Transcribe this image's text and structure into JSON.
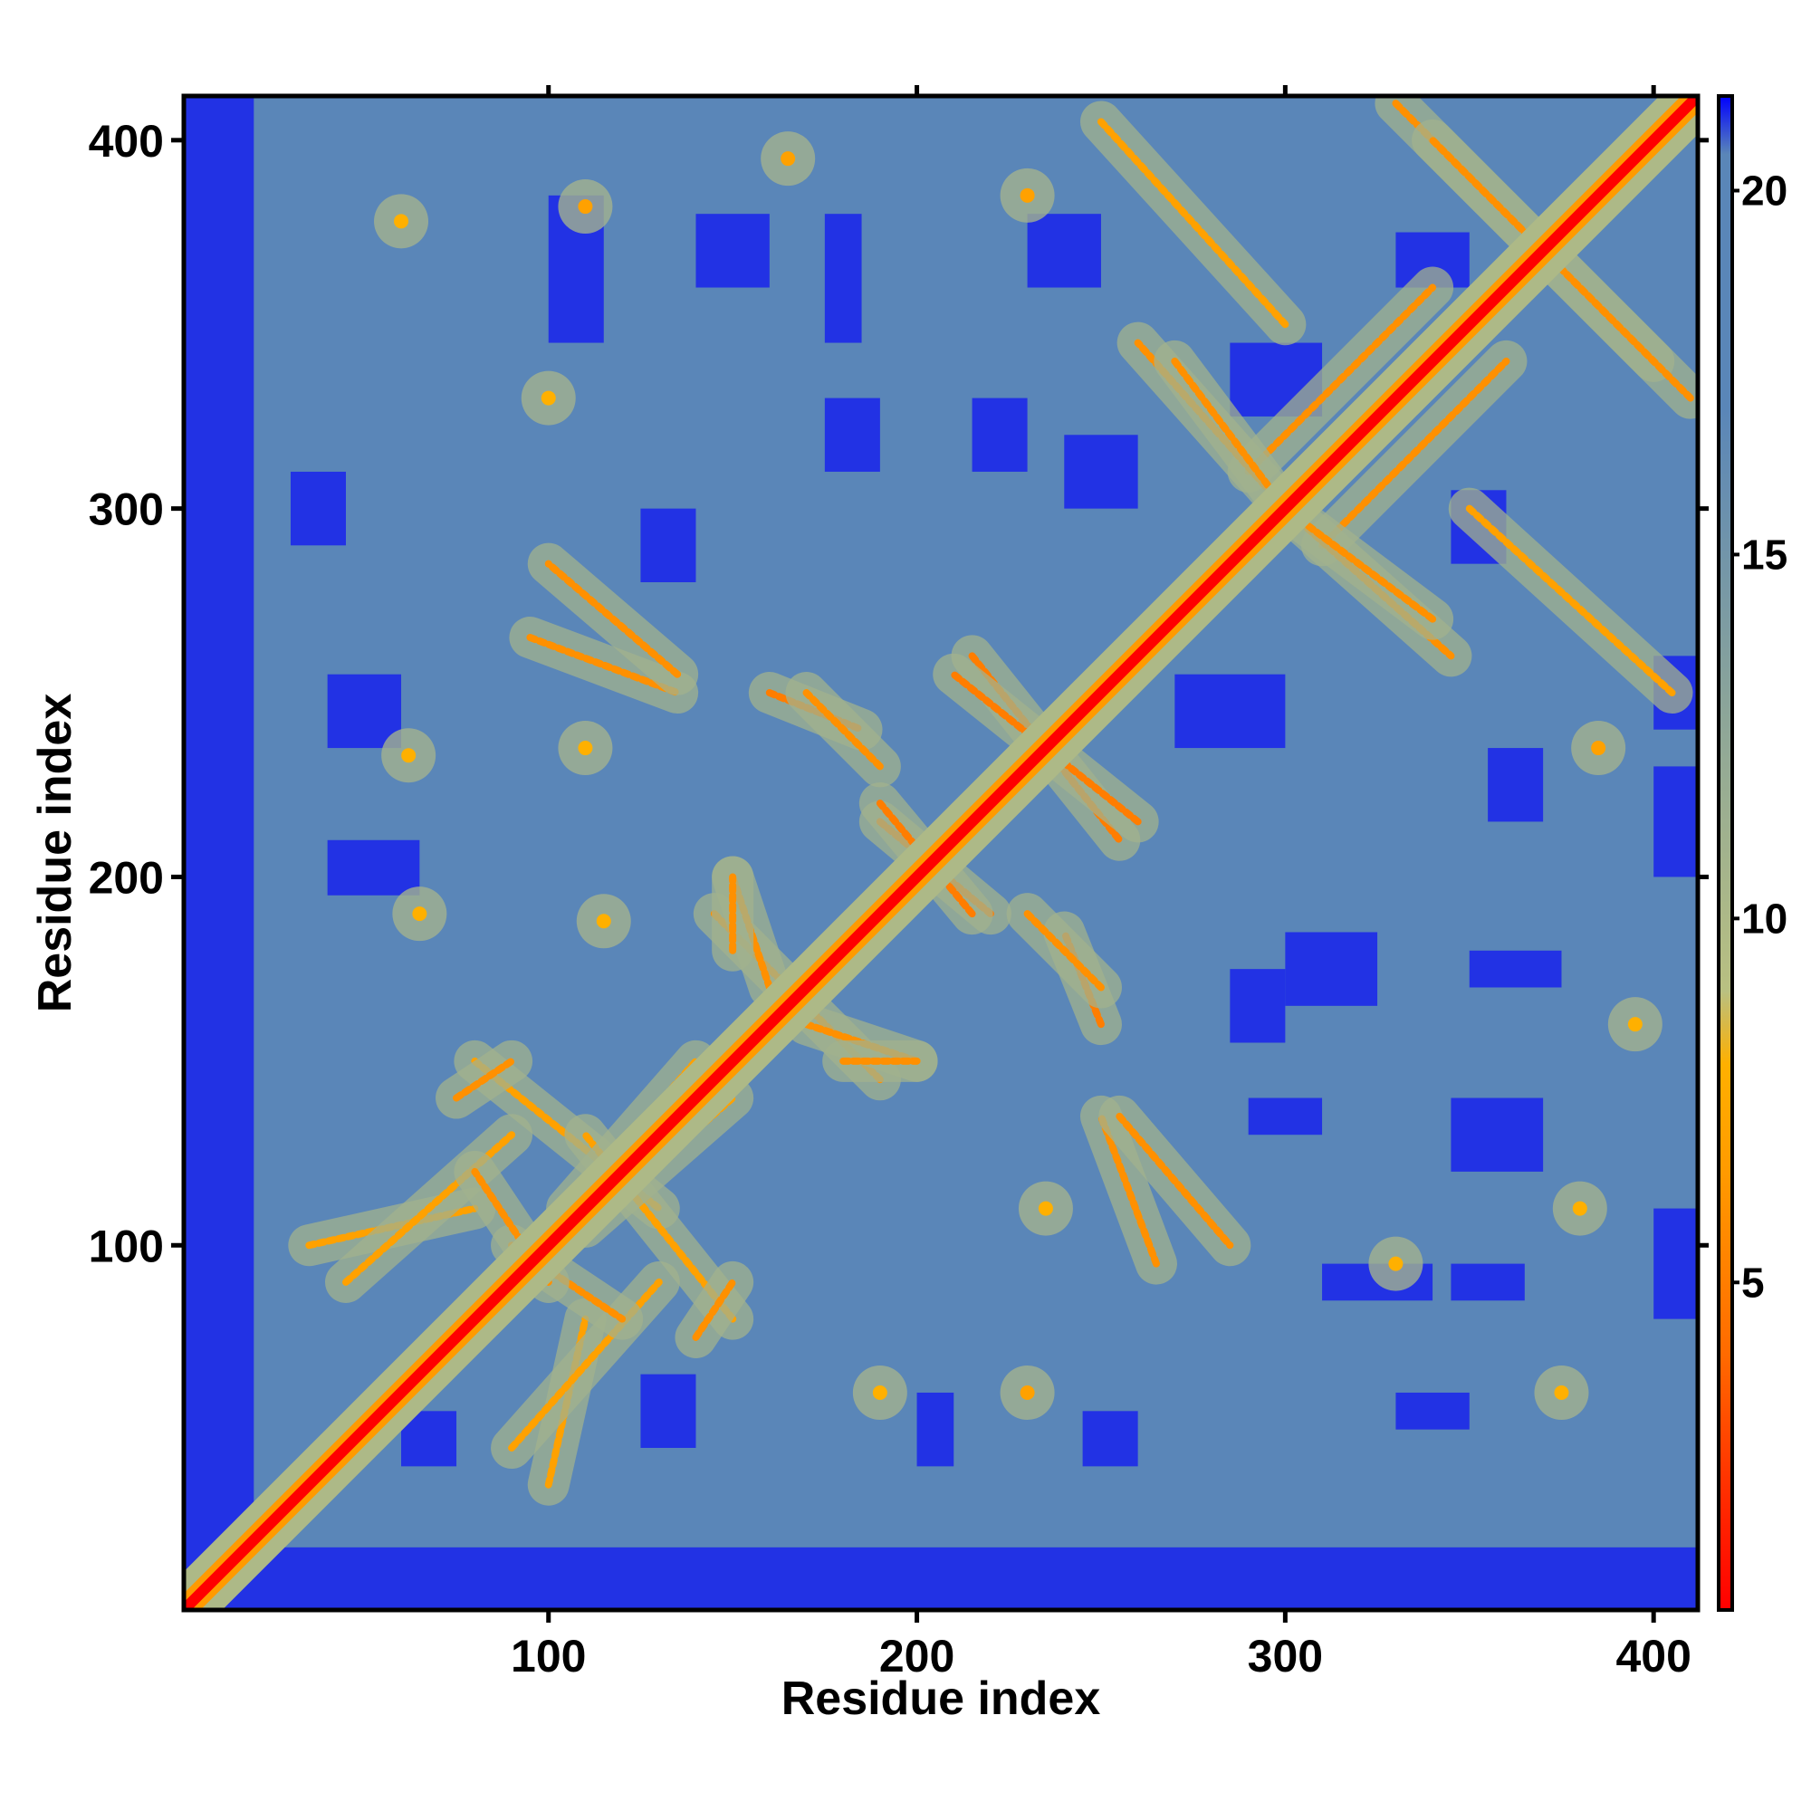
{
  "chart_data": {
    "type": "heatmap",
    "title": "",
    "xlabel": "Residue index",
    "ylabel": "Residue index",
    "xlim": [
      1,
      412
    ],
    "ylim": [
      1,
      412
    ],
    "x_ticks": [
      100,
      200,
      300,
      400
    ],
    "y_ticks": [
      100,
      200,
      300,
      400
    ],
    "colorbar": {
      "range": [
        0.5,
        21.3
      ],
      "ticks": [
        5,
        10,
        15,
        20
      ],
      "colors": {
        "near": "#ff0000",
        "mid": "#ff8c00",
        "light": "#d2c98a",
        "far": "#5a86b8",
        "max": "#0000ff"
      },
      "stops": [
        {
          "value": 0.5,
          "color": "#ff0000"
        },
        {
          "value": 2.0,
          "color": "#ff2a00"
        },
        {
          "value": 4.0,
          "color": "#ff6a00"
        },
        {
          "value": 6.5,
          "color": "#ff9a00"
        },
        {
          "value": 8.0,
          "color": "#ffb000"
        },
        {
          "value": 9.0,
          "color": "#b9c081"
        },
        {
          "value": 13.0,
          "color": "#8aa49a"
        },
        {
          "value": 17.0,
          "color": "#5a86b8"
        },
        {
          "value": 20.5,
          "color": "#5a86b8"
        },
        {
          "value": 21.3,
          "color": "#0000ff"
        }
      ]
    },
    "features": {
      "diagonal": {
        "from": [
          1,
          1
        ],
        "to": [
          412,
          412
        ],
        "value": 0
      },
      "contact_bands": [
        {
          "from": [
            290,
            310
          ],
          "to": [
            340,
            360
          ],
          "value": 6
        },
        {
          "from": [
            300,
            300
          ],
          "to": [
            345,
            260
          ],
          "value": 6
        },
        {
          "from": [
            270,
            340
          ],
          "to": [
            300,
            300
          ],
          "value": 6
        },
        {
          "from": [
            330,
            410
          ],
          "to": [
            400,
            340
          ],
          "value": 6
        },
        {
          "from": [
            350,
            300
          ],
          "to": [
            405,
            250
          ],
          "value": 7
        },
        {
          "from": [
            95,
            265
          ],
          "to": [
            135,
            250
          ],
          "value": 6
        },
        {
          "from": [
            160,
            250
          ],
          "to": [
            185,
            240
          ],
          "value": 5
        },
        {
          "from": [
            215,
            260
          ],
          "to": [
            255,
            210
          ],
          "value": 5
        },
        {
          "from": [
            190,
            215
          ],
          "to": [
            220,
            190
          ],
          "value": 5
        },
        {
          "from": [
            145,
            190
          ],
          "to": [
            165,
            170
          ],
          "value": 6
        },
        {
          "from": [
            230,
            190
          ],
          "to": [
            250,
            170
          ],
          "value": 6
        },
        {
          "from": [
            170,
            160
          ],
          "to": [
            200,
            150
          ],
          "value": 6
        },
        {
          "from": [
            80,
            150
          ],
          "to": [
            130,
            110
          ],
          "value": 7
        },
        {
          "from": [
            110,
            105
          ],
          "to": [
            150,
            140
          ],
          "value": 7
        },
        {
          "from": [
            35,
            100
          ],
          "to": [
            80,
            110
          ],
          "value": 7
        },
        {
          "from": [
            90,
            45
          ],
          "to": [
            130,
            90
          ],
          "value": 7
        },
        {
          "from": [
            90,
            100
          ],
          "to": [
            120,
            80
          ],
          "value": 6
        },
        {
          "from": [
            140,
            75
          ],
          "to": [
            150,
            90
          ],
          "value": 6
        },
        {
          "from": [
            255,
            135
          ],
          "to": [
            285,
            100
          ],
          "value": 6
        },
        {
          "from": [
            180,
            150
          ],
          "to": [
            200,
            150
          ],
          "value": 6
        },
        {
          "from": [
            60,
            60
          ],
          "to": [
            90,
            90
          ],
          "value": 6
        }
      ],
      "hotspots": [
        {
          "x": 165,
          "y": 395,
          "value": 7
        },
        {
          "x": 110,
          "y": 382,
          "value": 7
        },
        {
          "x": 60,
          "y": 378,
          "value": 8
        },
        {
          "x": 230,
          "y": 385,
          "value": 7
        },
        {
          "x": 100,
          "y": 330,
          "value": 8
        },
        {
          "x": 62,
          "y": 233,
          "value": 8
        },
        {
          "x": 110,
          "y": 235,
          "value": 8
        },
        {
          "x": 65,
          "y": 190,
          "value": 8
        },
        {
          "x": 115,
          "y": 188,
          "value": 8
        },
        {
          "x": 385,
          "y": 235,
          "value": 7
        },
        {
          "x": 395,
          "y": 160,
          "value": 8
        },
        {
          "x": 330,
          "y": 95,
          "value": 8
        },
        {
          "x": 375,
          "y": 60,
          "value": 8
        },
        {
          "x": 380,
          "y": 110,
          "value": 8
        },
        {
          "x": 230,
          "y": 60,
          "value": 7
        },
        {
          "x": 190,
          "y": 60,
          "value": 8
        },
        {
          "x": 235,
          "y": 110,
          "value": 8
        }
      ],
      "far_regions": [
        {
          "x": [
            1,
            20
          ],
          "y": [
            1,
            412
          ],
          "value": 21
        },
        {
          "x": [
            1,
            412
          ],
          "y": [
            1,
            18
          ],
          "value": 21
        },
        {
          "x": [
            140,
            160
          ],
          "y": [
            360,
            380
          ],
          "value": 21
        },
        {
          "x": [
            100,
            115
          ],
          "y": [
            345,
            385
          ],
          "value": 21
        },
        {
          "x": [
            175,
            185
          ],
          "y": [
            345,
            380
          ],
          "value": 21
        },
        {
          "x": [
            230,
            250
          ],
          "y": [
            360,
            380
          ],
          "value": 21
        },
        {
          "x": [
            285,
            310
          ],
          "y": [
            325,
            345
          ],
          "value": 21
        },
        {
          "x": [
            330,
            350
          ],
          "y": [
            360,
            375
          ],
          "value": 21
        },
        {
          "x": [
            345,
            360
          ],
          "y": [
            285,
            305
          ],
          "value": 21
        },
        {
          "x": [
            125,
            140
          ],
          "y": [
            280,
            300
          ],
          "value": 21
        },
        {
          "x": [
            175,
            190
          ],
          "y": [
            310,
            330
          ],
          "value": 21
        },
        {
          "x": [
            215,
            230
          ],
          "y": [
            310,
            330
          ],
          "value": 21
        },
        {
          "x": [
            240,
            260
          ],
          "y": [
            300,
            320
          ],
          "value": 21
        },
        {
          "x": [
            30,
            45
          ],
          "y": [
            290,
            310
          ],
          "value": 21
        },
        {
          "x": [
            40,
            60
          ],
          "y": [
            235,
            255
          ],
          "value": 21
        },
        {
          "x": [
            40,
            65
          ],
          "y": [
            195,
            210
          ],
          "value": 21
        },
        {
          "x": [
            270,
            300
          ],
          "y": [
            235,
            255
          ],
          "value": 21
        },
        {
          "x": [
            355,
            370
          ],
          "y": [
            215,
            235
          ],
          "value": 21
        },
        {
          "x": [
            285,
            300
          ],
          "y": [
            155,
            175
          ],
          "value": 21
        },
        {
          "x": [
            300,
            325
          ],
          "y": [
            165,
            185
          ],
          "value": 21
        },
        {
          "x": [
            350,
            375
          ],
          "y": [
            170,
            180
          ],
          "value": 21
        },
        {
          "x": [
            290,
            310
          ],
          "y": [
            130,
            140
          ],
          "value": 21
        },
        {
          "x": [
            345,
            370
          ],
          "y": [
            120,
            140
          ],
          "value": 21
        },
        {
          "x": [
            310,
            340
          ],
          "y": [
            85,
            95
          ],
          "value": 21
        },
        {
          "x": [
            345,
            365
          ],
          "y": [
            85,
            95
          ],
          "value": 21
        },
        {
          "x": [
            60,
            75
          ],
          "y": [
            40,
            55
          ],
          "value": 21
        },
        {
          "x": [
            125,
            140
          ],
          "y": [
            45,
            65
          ],
          "value": 21
        },
        {
          "x": [
            200,
            210
          ],
          "y": [
            40,
            60
          ],
          "value": 21
        },
        {
          "x": [
            245,
            260
          ],
          "y": [
            40,
            55
          ],
          "value": 21
        },
        {
          "x": [
            330,
            350
          ],
          "y": [
            50,
            60
          ],
          "value": 21
        },
        {
          "x": [
            400,
            412
          ],
          "y": [
            200,
            230
          ],
          "value": 21
        },
        {
          "x": [
            400,
            412
          ],
          "y": [
            240,
            260
          ],
          "value": 21
        },
        {
          "x": [
            400,
            412
          ],
          "y": [
            80,
            110
          ],
          "value": 21
        }
      ]
    }
  }
}
